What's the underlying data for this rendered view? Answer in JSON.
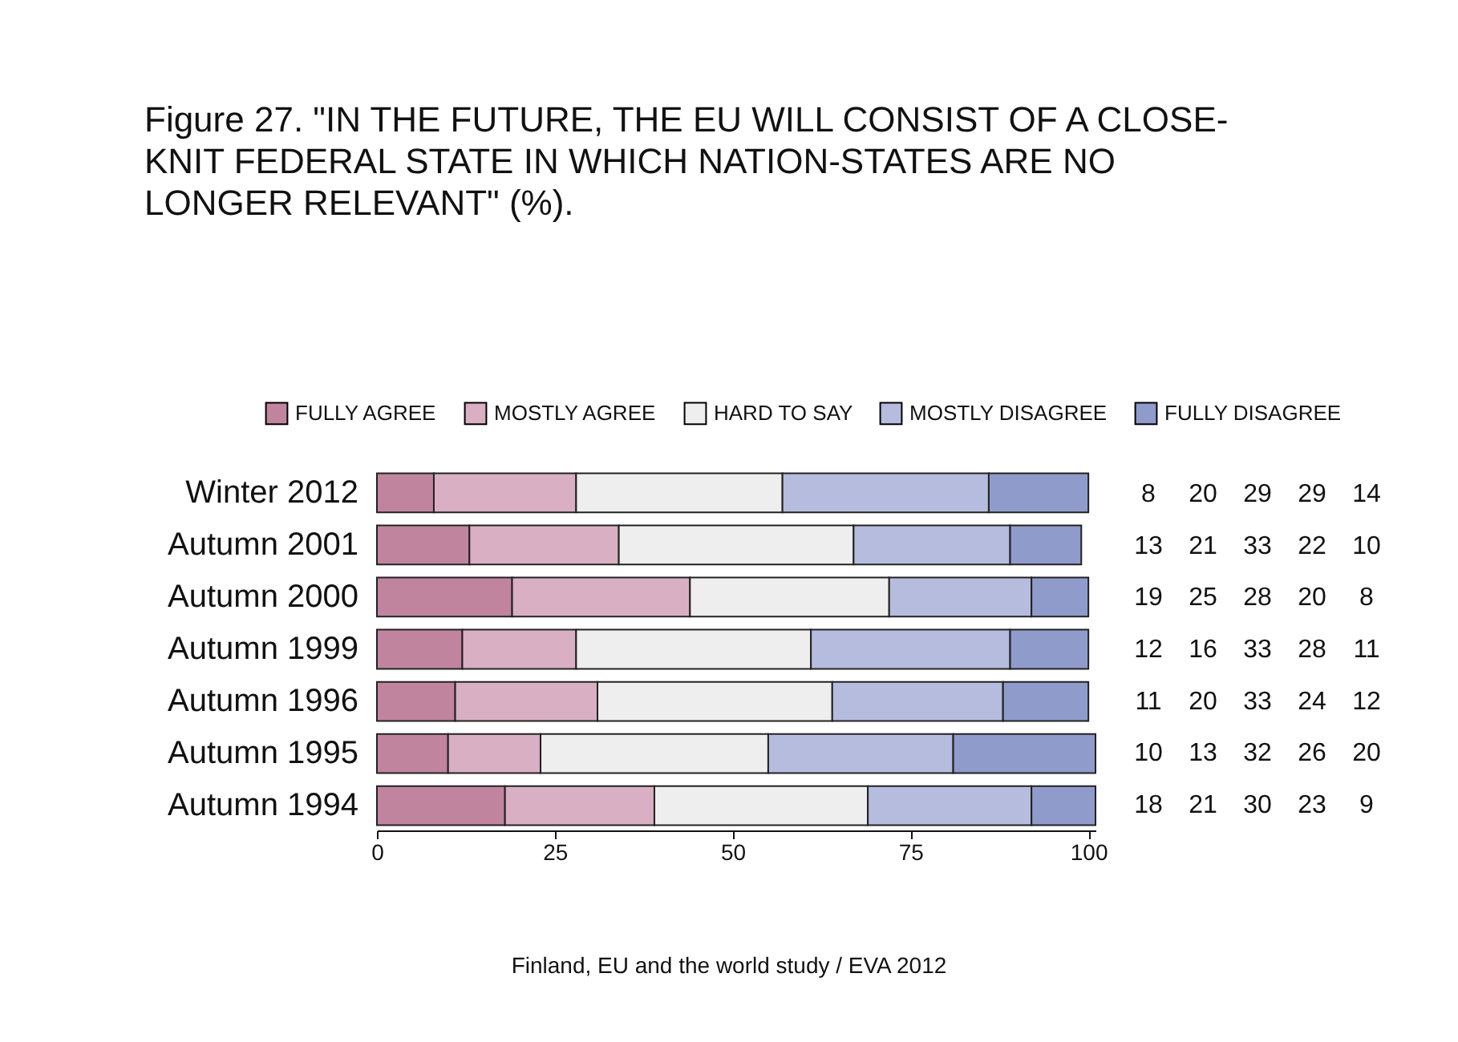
{
  "chart_data": {
    "type": "bar",
    "orientation": "horizontal",
    "stacked": true,
    "title": "Figure 27. \"IN THE FUTURE, THE EU WILL CONSIST OF A CLOSE-KNIT FEDERAL STATE IN WHICH NATION-STATES ARE NO LONGER RELEVANT\" (%).",
    "categories": [
      "Winter 2012",
      "Autumn 2001",
      "Autumn 2000",
      "Autumn 1999",
      "Autumn 1996",
      "Autumn 1995",
      "Autumn 1994"
    ],
    "series": [
      {
        "name": "FULLY AGREE",
        "color": "#c0849f",
        "values": [
          8,
          13,
          19,
          12,
          11,
          10,
          18
        ]
      },
      {
        "name": "MOSTLY AGREE",
        "color": "#d8afc3",
        "values": [
          20,
          21,
          25,
          16,
          20,
          13,
          21
        ]
      },
      {
        "name": "HARD TO SAY",
        "color": "#eeeeee",
        "values": [
          29,
          33,
          28,
          33,
          33,
          32,
          30
        ]
      },
      {
        "name": "MOSTLY DISAGREE",
        "color": "#b5bcde",
        "values": [
          29,
          22,
          20,
          28,
          24,
          26,
          23
        ]
      },
      {
        "name": "FULLY DISAGREE",
        "color": "#8f9bca",
        "values": [
          14,
          10,
          8,
          11,
          12,
          20,
          9
        ]
      }
    ],
    "xlim": [
      0,
      101
    ],
    "xticks": [
      0,
      25,
      50,
      75,
      100
    ],
    "data_labels": true,
    "legend": "top",
    "grid": false,
    "annotations": [
      "Finland, EU and the world study / EVA 2012"
    ]
  }
}
